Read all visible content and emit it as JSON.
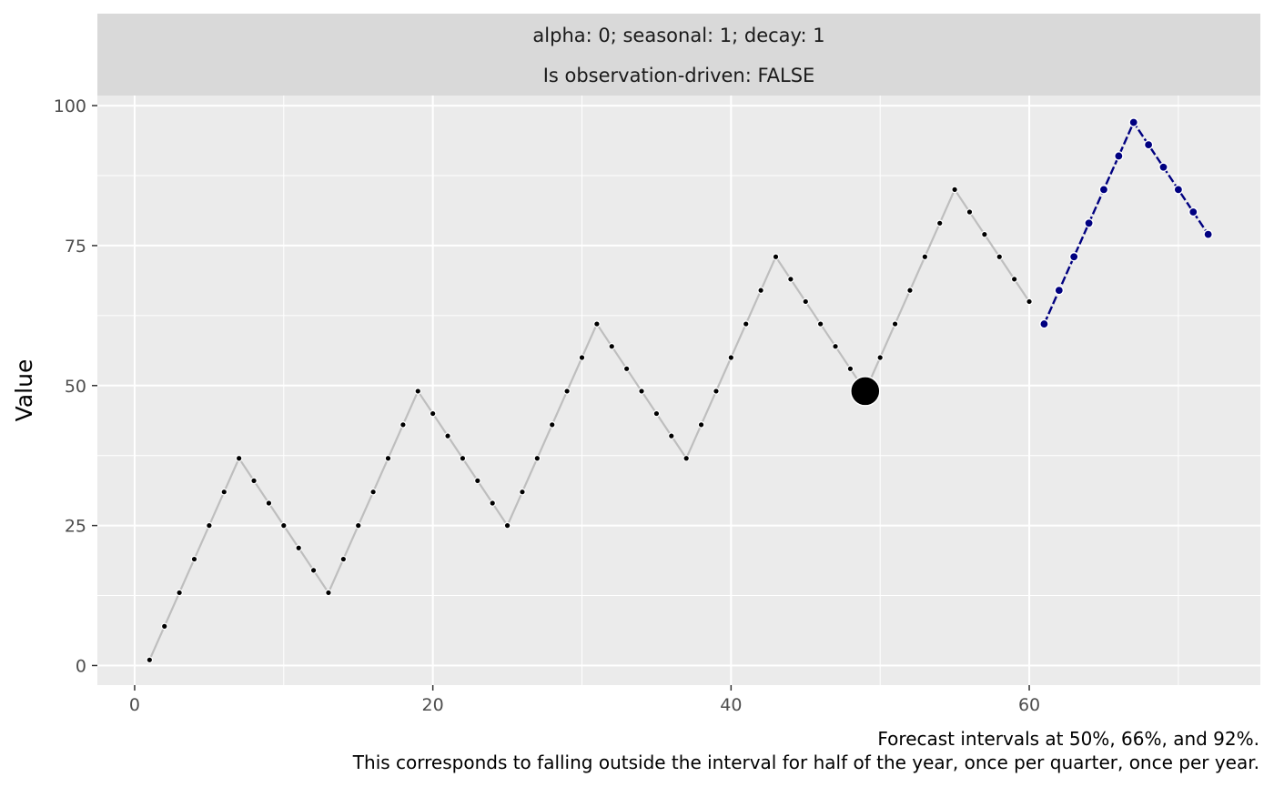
{
  "chart_data": {
    "type": "line",
    "facet_strip": {
      "line1": "alpha: 0; seasonal: 1; decay: 1",
      "line2": "Is observation-driven: FALSE"
    },
    "xlabel": "",
    "ylabel": "Value",
    "xlim": [
      -2.5,
      75.5
    ],
    "ylim": [
      -3.5,
      101.8
    ],
    "x_ticks": [
      0,
      20,
      40,
      60
    ],
    "y_ticks": [
      0,
      25,
      50,
      75,
      100
    ],
    "x_tick_labels": [
      "0",
      "20",
      "40",
      "60"
    ],
    "y_tick_labels": [
      "0",
      "25",
      "50",
      "75",
      "100"
    ],
    "grid": true,
    "caption": [
      "Forecast intervals at 50%, 66%, and 92%.",
      "This corresponds to falling outside the interval for half of the year, once per quarter, once per year."
    ],
    "colors": {
      "panel_bg": "#ebebeb",
      "strip_bg": "#d9d9d9",
      "grid": "#ffffff",
      "history_line": "#bebebe",
      "history_point": "#000000",
      "forecast": "#000080",
      "highlight": "#000000"
    },
    "series": [
      {
        "role": "history",
        "x": [
          1,
          2,
          3,
          4,
          5,
          6,
          7,
          8,
          9,
          10,
          11,
          12,
          13,
          14,
          15,
          16,
          17,
          18,
          19,
          20,
          21,
          22,
          23,
          24,
          25,
          26,
          27,
          28,
          29,
          30,
          31,
          32,
          33,
          34,
          35,
          36,
          37,
          38,
          39,
          40,
          41,
          42,
          43,
          44,
          45,
          46,
          47,
          48,
          49,
          50,
          51,
          52,
          53,
          54,
          55,
          56,
          57,
          58,
          59,
          60
        ],
        "y": [
          1,
          7,
          13,
          19,
          25,
          31,
          37,
          33,
          29,
          25,
          21,
          17,
          13,
          19,
          25,
          31,
          37,
          43,
          49,
          45,
          41,
          37,
          33,
          29,
          25,
          31,
          37,
          43,
          49,
          55,
          61,
          57,
          53,
          49,
          45,
          41,
          37,
          43,
          49,
          55,
          61,
          67,
          73,
          69,
          65,
          61,
          57,
          53,
          49,
          55,
          61,
          67,
          73,
          79,
          85,
          81,
          77,
          73,
          69,
          65
        ]
      },
      {
        "role": "forecast",
        "x": [
          61,
          62,
          63,
          64,
          65,
          66,
          67,
          68,
          69,
          70,
          71,
          72
        ],
        "y": [
          61,
          67,
          73,
          79,
          85,
          91,
          97,
          93,
          89,
          85,
          81,
          77
        ]
      }
    ],
    "highlight_point": {
      "x": 49,
      "y": 49
    }
  }
}
